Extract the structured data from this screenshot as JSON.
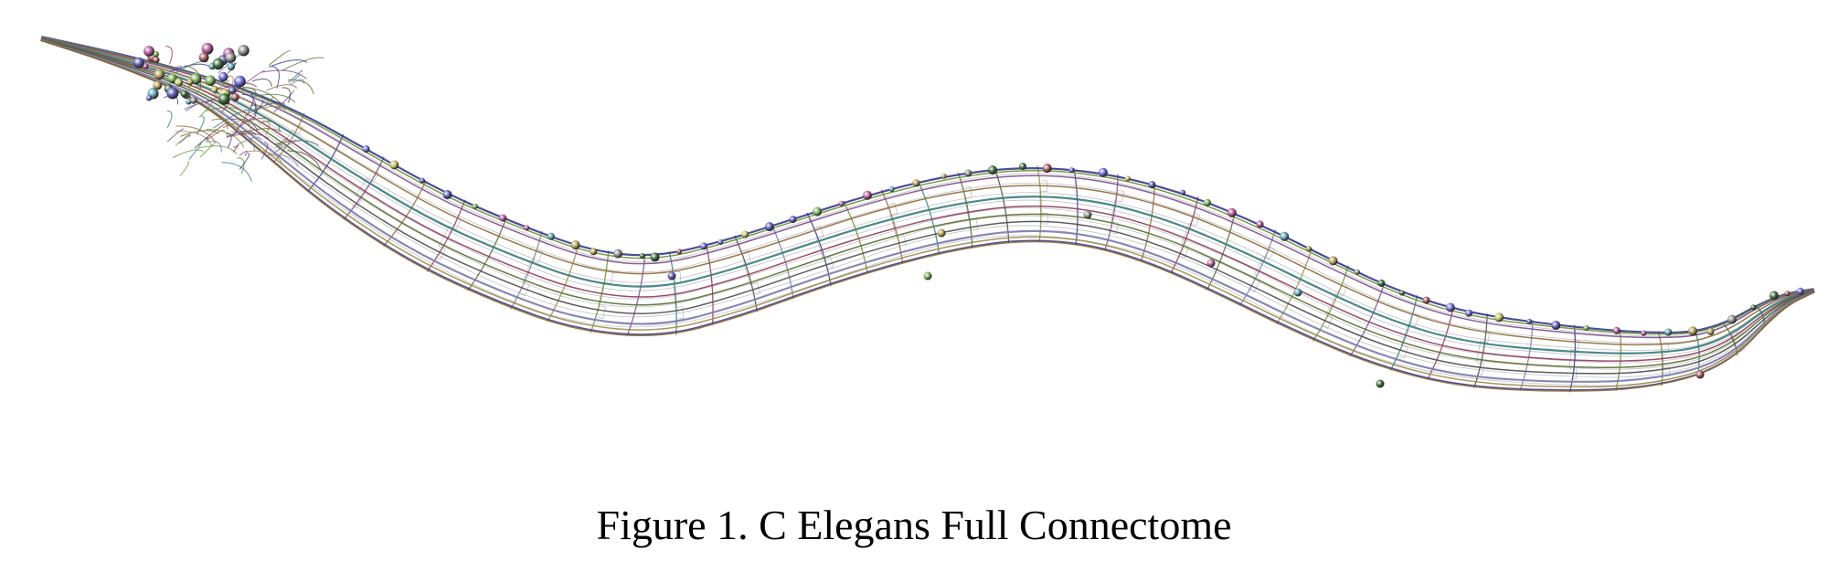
{
  "figure": {
    "caption": "Figure 1. C Elegans Full Connectome",
    "subject": "worm-connectome-render"
  },
  "palette": {
    "neurite_colors": [
      "#3a3a8a",
      "#6a8f3a",
      "#7a4a8a",
      "#8a6a3a",
      "#3a7a7a",
      "#8a3a5a",
      "#556b2f",
      "#4a4a4a",
      "#7a7aaa",
      "#9a8a4a"
    ],
    "faint_fiber": "#a8a8a8",
    "soma_colors": [
      "#5a5ab0",
      "#7ab05a",
      "#b05a9a",
      "#5aa0b0",
      "#b0a05a",
      "#8a8a8a",
      "#3a6a3a",
      "#a05a5a",
      "#6a6ad0",
      "#c0c060"
    ]
  }
}
